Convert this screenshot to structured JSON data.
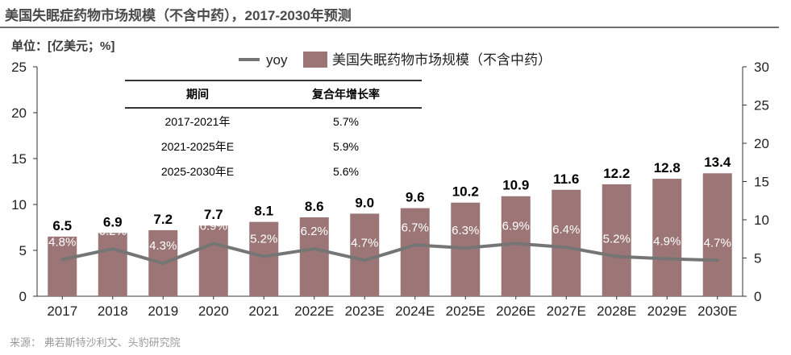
{
  "title": "美国失眠症药物市场规模（不含中药），2017-2030年预测",
  "unit": "单位：[亿美元；%]",
  "source": "来源：  弗若斯特沙利文、头豹研究院",
  "colors": {
    "bar": "#9c7676",
    "line": "#757575",
    "axis": "#333333"
  },
  "chart_data": {
    "type": "bar",
    "categories": [
      "2017",
      "2018",
      "2019",
      "2020",
      "2021",
      "2022E",
      "2023E",
      "2024E",
      "2025E",
      "2026E",
      "2027E",
      "2028E",
      "2029E",
      "2030E"
    ],
    "series": [
      {
        "name": "美国失眠药物市场规模（不含中药）",
        "type": "bar",
        "axis": "left",
        "values": [
          6.5,
          6.9,
          7.2,
          7.7,
          8.1,
          8.6,
          9.0,
          9.6,
          10.2,
          10.9,
          11.6,
          12.2,
          12.8,
          13.4
        ]
      },
      {
        "name": "yoy",
        "type": "line",
        "axis": "right",
        "values": [
          4.8,
          6.2,
          4.3,
          6.9,
          5.2,
          6.2,
          4.7,
          6.7,
          6.3,
          6.9,
          6.4,
          5.2,
          4.9,
          4.7
        ]
      }
    ],
    "value_labels": [
      "6.5",
      "6.9",
      "7.2",
      "7.7",
      "8.1",
      "8.6",
      "9.0",
      "9.6",
      "10.2",
      "10.9",
      "11.6",
      "12.2",
      "12.8",
      "13.4"
    ],
    "yoy_labels": [
      "4.8%",
      "6.2%",
      "4.3%",
      "6.9%",
      "5.2%",
      "6.2%",
      "4.7%",
      "6.7%",
      "6.3%",
      "6.9%",
      "6.4%",
      "5.2%",
      "4.9%",
      "4.7%"
    ],
    "y_left": {
      "ylim": [
        0,
        25
      ],
      "ticks": [
        "0",
        "5",
        "10",
        "15",
        "20",
        "25"
      ]
    },
    "y_right": {
      "ylim": [
        0,
        30
      ],
      "ticks": [
        "0",
        "5",
        "10",
        "15",
        "20",
        "25",
        "30"
      ]
    },
    "legend": {
      "position": "top",
      "items": [
        "yoy",
        "美国失眠药物市场规模（不含中药）"
      ]
    },
    "grid": false
  },
  "cagr_table": {
    "headers": [
      "期间",
      "复合年增长率"
    ],
    "rows": [
      {
        "period": "2017-2021年",
        "rate": "5.7%"
      },
      {
        "period": "2021-2025年E",
        "rate": "5.9%"
      },
      {
        "period": "2025-2030年E",
        "rate": "5.6%"
      }
    ]
  }
}
